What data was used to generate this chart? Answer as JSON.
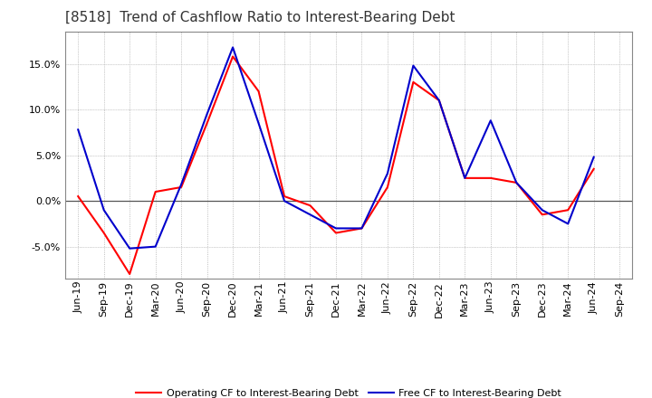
{
  "title": "[8518]  Trend of Cashflow Ratio to Interest-Bearing Debt",
  "x_labels": [
    "Jun-19",
    "Sep-19",
    "Dec-19",
    "Mar-20",
    "Jun-20",
    "Sep-20",
    "Dec-20",
    "Mar-21",
    "Jun-21",
    "Sep-21",
    "Dec-21",
    "Mar-22",
    "Jun-22",
    "Sep-22",
    "Dec-22",
    "Mar-23",
    "Jun-23",
    "Sep-23",
    "Dec-23",
    "Mar-24",
    "Jun-24",
    "Sep-24"
  ],
  "operating_cf": [
    0.5,
    -3.5,
    -8.0,
    1.0,
    1.5,
    8.5,
    15.8,
    12.0,
    0.5,
    -0.5,
    -3.5,
    -3.0,
    1.5,
    13.0,
    11.0,
    2.5,
    2.5,
    2.0,
    -1.5,
    -1.0,
    3.5,
    null
  ],
  "free_cf": [
    7.8,
    -1.0,
    -5.2,
    -5.0,
    1.8,
    9.5,
    16.8,
    8.5,
    0.0,
    -1.5,
    -3.0,
    -3.0,
    3.0,
    14.8,
    11.0,
    2.5,
    8.8,
    2.0,
    -1.0,
    -2.5,
    4.8,
    null
  ],
  "ylim": [
    -8.5,
    18.5
  ],
  "yticks": [
    -5.0,
    0.0,
    5.0,
    10.0,
    15.0
  ],
  "operating_color": "#ff0000",
  "free_color": "#0000cc",
  "background_color": "#ffffff",
  "plot_bg_color": "#ffffff",
  "grid_color": "#aaaaaa",
  "legend_operating": "Operating CF to Interest-Bearing Debt",
  "legend_free": "Free CF to Interest-Bearing Debt",
  "title_fontsize": 11,
  "tick_fontsize": 8,
  "legend_fontsize": 8
}
